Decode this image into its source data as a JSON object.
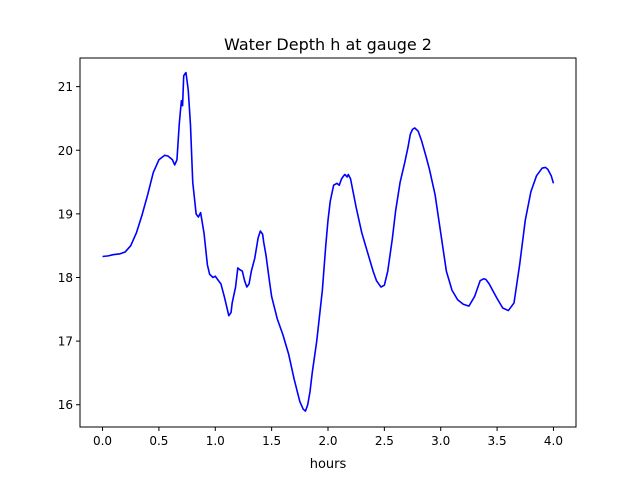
{
  "chart_data": {
    "type": "line",
    "title": "Water Depth h at gauge 2",
    "xlabel": "hours",
    "ylabel": "",
    "xlim": [
      -0.2,
      4.2
    ],
    "ylim": [
      15.65,
      21.45
    ],
    "xticks": [
      0.0,
      0.5,
      1.0,
      1.5,
      2.0,
      2.5,
      3.0,
      3.5,
      4.0
    ],
    "xtick_labels": [
      "0.0",
      "0.5",
      "1.0",
      "1.5",
      "2.0",
      "2.5",
      "3.0",
      "3.5",
      "4.0"
    ],
    "yticks": [
      16,
      17,
      18,
      19,
      20,
      21
    ],
    "ytick_labels": [
      "16",
      "17",
      "18",
      "19",
      "20",
      "21"
    ],
    "grid": false,
    "series": [
      {
        "color": "#0000ff",
        "x": [
          0.0,
          0.05,
          0.1,
          0.15,
          0.2,
          0.25,
          0.3,
          0.35,
          0.4,
          0.45,
          0.5,
          0.55,
          0.58,
          0.62,
          0.64,
          0.66,
          0.68,
          0.69,
          0.7,
          0.71,
          0.72,
          0.73,
          0.74,
          0.76,
          0.78,
          0.8,
          0.83,
          0.85,
          0.87,
          0.9,
          0.93,
          0.95,
          0.98,
          1.0,
          1.02,
          1.05,
          1.08,
          1.1,
          1.12,
          1.14,
          1.15,
          1.18,
          1.2,
          1.22,
          1.24,
          1.26,
          1.28,
          1.3,
          1.32,
          1.35,
          1.38,
          1.4,
          1.42,
          1.43,
          1.45,
          1.48,
          1.5,
          1.55,
          1.6,
          1.65,
          1.7,
          1.75,
          1.78,
          1.8,
          1.82,
          1.84,
          1.86,
          1.9,
          1.95,
          1.98,
          2.0,
          2.02,
          2.05,
          2.08,
          2.1,
          2.12,
          2.14,
          2.15,
          2.17,
          2.18,
          2.2,
          2.25,
          2.3,
          2.35,
          2.4,
          2.43,
          2.47,
          2.5,
          2.53,
          2.57,
          2.6,
          2.64,
          2.68,
          2.71,
          2.73,
          2.75,
          2.77,
          2.8,
          2.83,
          2.87,
          2.9,
          2.95,
          3.0,
          3.05,
          3.1,
          3.15,
          3.2,
          3.25,
          3.3,
          3.33,
          3.35,
          3.38,
          3.4,
          3.43,
          3.46,
          3.5,
          3.55,
          3.6,
          3.65,
          3.7,
          3.75,
          3.8,
          3.85,
          3.9,
          3.93,
          3.95,
          3.98,
          4.0
        ],
        "y": [
          18.33,
          18.34,
          18.36,
          18.37,
          18.4,
          18.5,
          18.7,
          18.98,
          19.3,
          19.65,
          19.85,
          19.92,
          19.91,
          19.85,
          19.77,
          19.85,
          20.4,
          20.6,
          20.78,
          20.7,
          21.17,
          21.2,
          21.22,
          20.95,
          20.4,
          19.5,
          19.0,
          18.95,
          19.02,
          18.7,
          18.2,
          18.05,
          18.0,
          18.02,
          17.97,
          17.9,
          17.7,
          17.55,
          17.4,
          17.45,
          17.6,
          17.85,
          18.15,
          18.12,
          18.1,
          17.95,
          17.85,
          17.9,
          18.1,
          18.3,
          18.62,
          18.73,
          18.68,
          18.55,
          18.35,
          17.95,
          17.7,
          17.35,
          17.1,
          16.8,
          16.4,
          16.05,
          15.93,
          15.9,
          16.0,
          16.2,
          16.5,
          17.0,
          17.8,
          18.5,
          18.9,
          19.2,
          19.45,
          19.48,
          19.45,
          19.55,
          19.6,
          19.62,
          19.58,
          19.62,
          19.55,
          19.1,
          18.7,
          18.4,
          18.1,
          17.95,
          17.85,
          17.88,
          18.1,
          18.6,
          19.05,
          19.5,
          19.8,
          20.05,
          20.25,
          20.33,
          20.35,
          20.3,
          20.15,
          19.9,
          19.7,
          19.3,
          18.7,
          18.1,
          17.8,
          17.65,
          17.58,
          17.55,
          17.7,
          17.85,
          17.95,
          17.98,
          17.97,
          17.9,
          17.8,
          17.67,
          17.52,
          17.48,
          17.6,
          18.2,
          18.9,
          19.35,
          19.6,
          19.72,
          19.73,
          19.7,
          19.6,
          19.48
        ]
      }
    ]
  }
}
